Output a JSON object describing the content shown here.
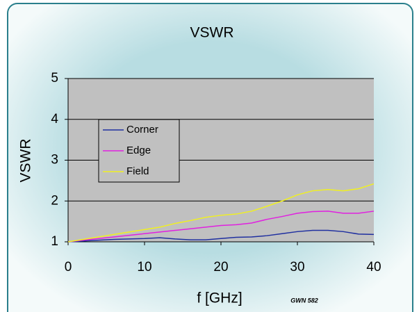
{
  "chart_data": {
    "type": "line",
    "title": "VSWR",
    "x_label": "f [GHz]",
    "y_label": "VSWR",
    "annotation": "GWN 582",
    "x": [
      0,
      2,
      4,
      6,
      8,
      10,
      12,
      14,
      16,
      18,
      20,
      22,
      24,
      26,
      28,
      30,
      32,
      34,
      36,
      38,
      40
    ],
    "series": [
      {
        "name": "Corner",
        "color": "#1f2fa0",
        "values": [
          1,
          1.02,
          1.04,
          1.06,
          1.07,
          1.08,
          1.1,
          1.07,
          1.05,
          1.05,
          1.08,
          1.11,
          1.12,
          1.15,
          1.2,
          1.25,
          1.28,
          1.28,
          1.25,
          1.19,
          1.18
        ]
      },
      {
        "name": "Edge",
        "color": "#e020e0",
        "values": [
          1,
          1.04,
          1.08,
          1.12,
          1.16,
          1.2,
          1.24,
          1.28,
          1.32,
          1.36,
          1.4,
          1.42,
          1.46,
          1.55,
          1.62,
          1.7,
          1.74,
          1.75,
          1.7,
          1.7,
          1.75
        ]
      },
      {
        "name": "Field",
        "color": "#f0f020",
        "values": [
          1,
          1.06,
          1.12,
          1.18,
          1.24,
          1.3,
          1.36,
          1.45,
          1.52,
          1.6,
          1.65,
          1.68,
          1.75,
          1.87,
          2.0,
          2.15,
          2.25,
          2.28,
          2.25,
          2.3,
          2.42
        ]
      }
    ],
    "xlim": [
      0,
      40
    ],
    "xticks": [
      0,
      10,
      20,
      30,
      40
    ],
    "ylim": [
      1,
      5
    ],
    "yticks": [
      1,
      2,
      3,
      4,
      5
    ],
    "grid": true,
    "legend": "upper left"
  }
}
